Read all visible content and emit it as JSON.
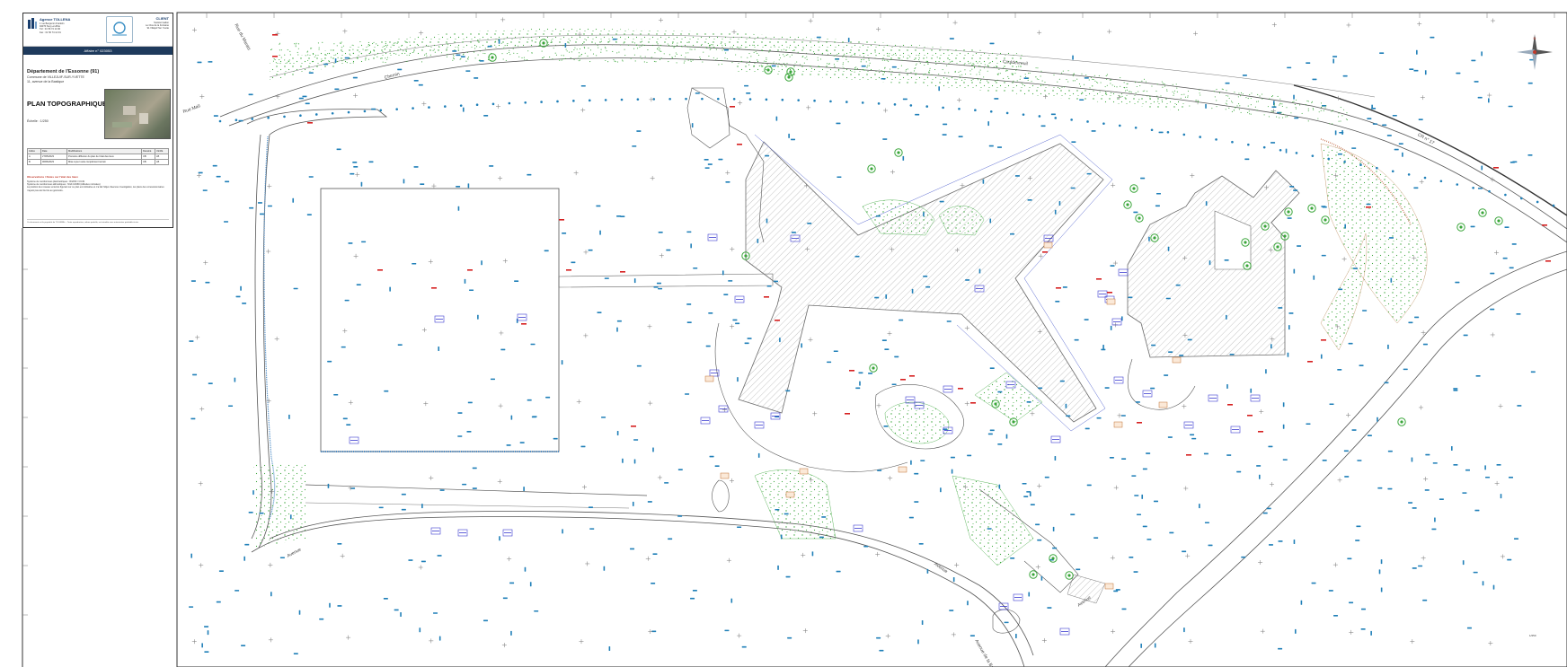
{
  "cartouche": {
    "agency_name": "Agence TOLLENA",
    "agency_lines": [
      "1 rue Benjamin Franklin",
      "94370 Sucy-en-Brie",
      "Tél : 01 56 74 14 90",
      "Fax : 01 56 74 14 91"
    ],
    "client_title": "CLIENT",
    "client_lines": [
      "Société Galion",
      "Le Clos de la Fontaine",
      "91 Villejuif Sur Yvette"
    ],
    "affaire": "Affaire n° 023053",
    "department": "Département de l'Essonne (91)",
    "commune": "Commune de VILLEJUIF-SUR-YVETTE",
    "address": "11, avenue de la Bastique",
    "plan_title": "PLAN TOPOGRAPHIQUE",
    "scale": "Échelle : 1/250",
    "revisions_header": [
      "Indice",
      "Date",
      "Modifications",
      "Dessiné",
      "Vérifié"
    ],
    "revisions": [
      [
        "A",
        "27/05/2023",
        "Première diffusion du plan de l'état des lieux",
        "CB",
        "LB"
      ],
      [
        "B",
        "06/06/2023",
        "Mise à jour suite complément terrain",
        "CB",
        "LB"
      ]
    ],
    "notes_title": "Observations / Notes sur l'état des lieux",
    "notes": [
      "Système de coordonnées planimétriques : RGF93 / CC49",
      "Système de coordonnées altimétriques : NGF-IGN69 (Altitudes normales)",
      "La position des réseaux enterrés figurant sur ce plan est indicative et n'a fait l'objet d'aucune investigation, les plans des concessionnaires n'ayant pas été fournis au géomètre."
    ],
    "footer": "Ce document est la propriété de TOLLENA — Toute reproduction, même partielle, est interdite sans autorisation préalable écrite."
  },
  "streets": {
    "rue_a": "Rue du Marais",
    "rue_b": "Rue Maïl",
    "chemin": "Chemin",
    "couldevreuil": "Couldevreuil",
    "cr": "CR n° 17",
    "avenue": "Avenue",
    "avenue_b": "Avenue",
    "avenue_c": "Avenue",
    "avenue_bastique": "Avenue de la Bastique"
  },
  "compass_label": "N",
  "scalebar_label": "1/250",
  "colors": {
    "paper": "#ffffff",
    "line": "#4a4a4a",
    "vegetation": "#3aa63a",
    "survey_point": "#1f7fb8",
    "building_hatch": "#9a9a9a",
    "spot_label": "#3a3ad0",
    "red_marker": "#d62020",
    "orange_box": "#c07030"
  }
}
